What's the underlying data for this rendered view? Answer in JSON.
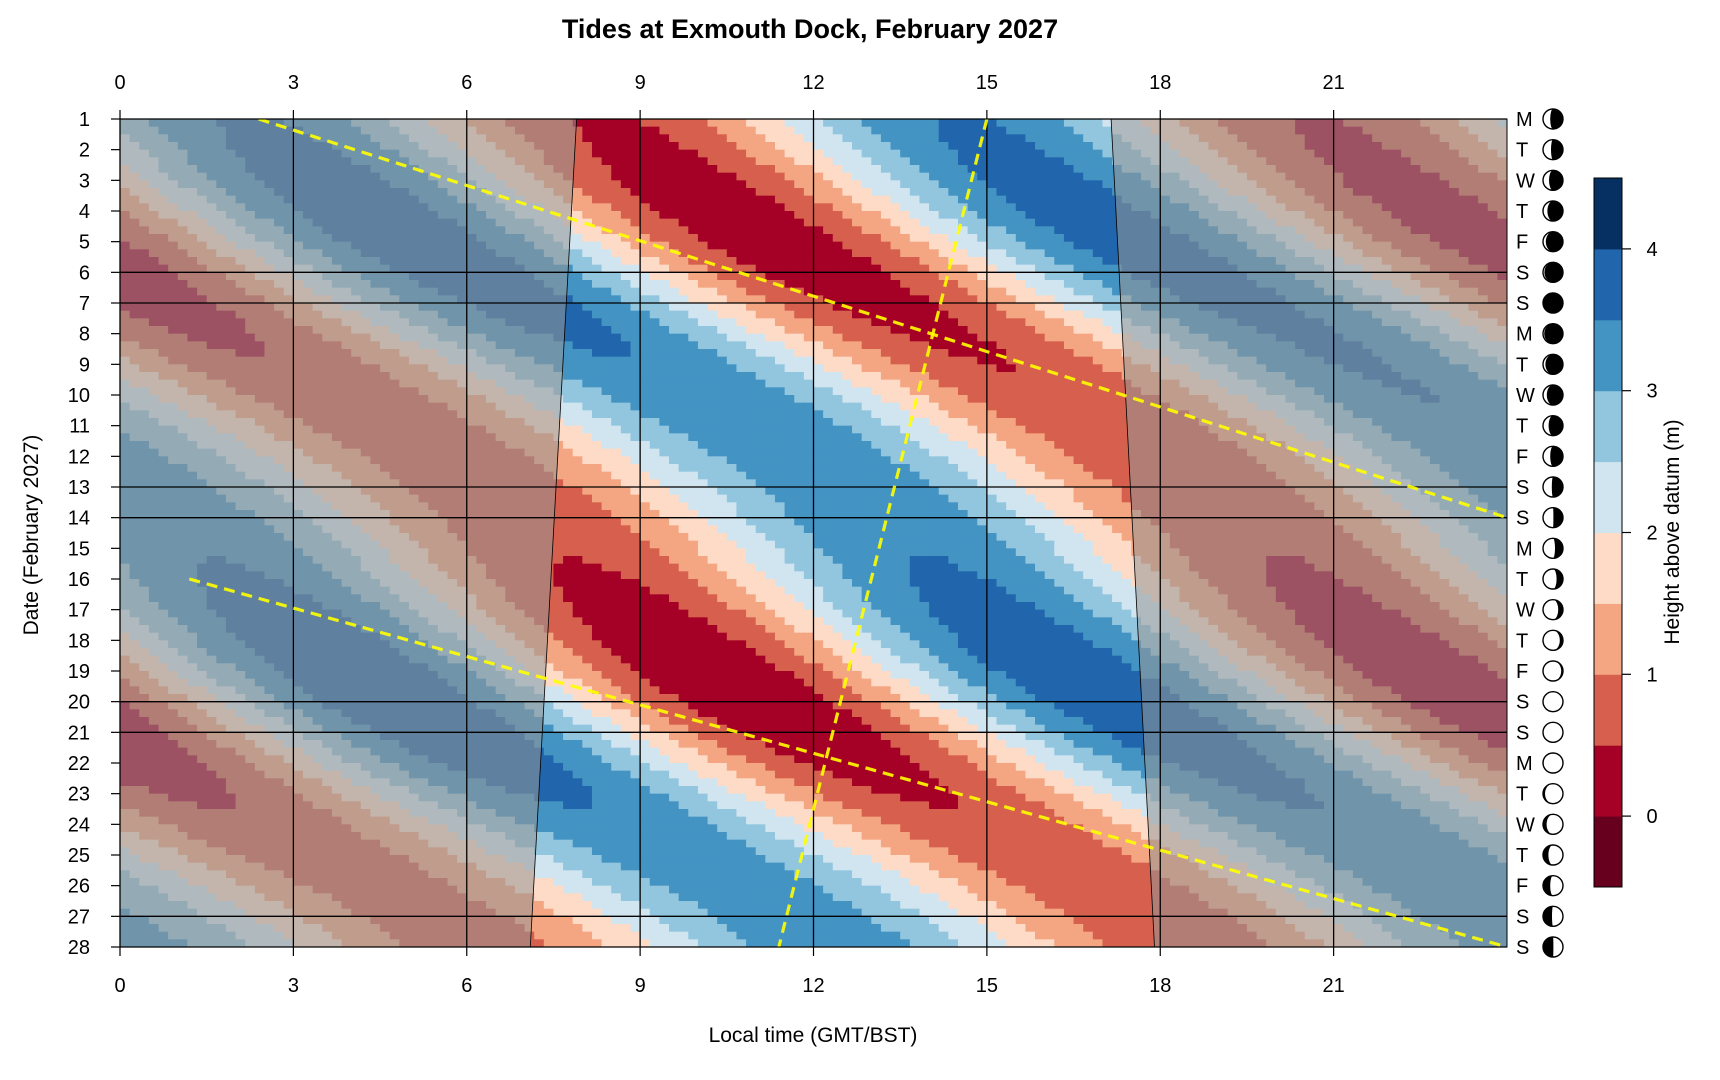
{
  "chart_data": {
    "type": "heatmap",
    "title": "Tides at Exmouth Dock, February 2027",
    "xlabel": "Local time (GMT/BST)",
    "ylabel": "Date (February 2027)",
    "colorbar_label": "Height above datum (m)",
    "x_range": [
      0,
      24
    ],
    "y_range": [
      1,
      28
    ],
    "x_ticks": [
      "0",
      "3",
      "6",
      "9",
      "12",
      "15",
      "18",
      "21"
    ],
    "y_ticks": [
      "1",
      "2",
      "3",
      "4",
      "5",
      "6",
      "7",
      "8",
      "9",
      "10",
      "11",
      "12",
      "13",
      "14",
      "15",
      "16",
      "17",
      "18",
      "19",
      "20",
      "21",
      "22",
      "23",
      "24",
      "25",
      "26",
      "27",
      "28"
    ],
    "weekdays": [
      "M",
      "T",
      "W",
      "T",
      "F",
      "S",
      "S",
      "M",
      "T",
      "W",
      "T",
      "F",
      "S",
      "S",
      "M",
      "T",
      "W",
      "T",
      "F",
      "S",
      "S",
      "M",
      "T",
      "W",
      "T",
      "F",
      "S",
      "S"
    ],
    "moon_phase_fraction": [
      0.64,
      0.6,
      0.7,
      0.78,
      0.86,
      0.93,
      0.99,
      0.94,
      0.88,
      0.81,
      0.72,
      0.64,
      0.56,
      0.48,
      0.4,
      0.32,
      0.24,
      0.16,
      0.09,
      0.02,
      0.0,
      0.03,
      0.1,
      0.18,
      0.27,
      0.36,
      0.45,
      0.52
    ],
    "colorbar_ticks": [
      "0",
      "1",
      "2",
      "3",
      "4"
    ],
    "colorbar_range": [
      -0.5,
      4.5
    ],
    "color_levels": [
      {
        "from": -0.5,
        "to": 0.0,
        "color": "#67001f"
      },
      {
        "from": 0.0,
        "to": 0.5,
        "color": "#a50026"
      },
      {
        "from": 0.5,
        "to": 1.0,
        "color": "#d6604d"
      },
      {
        "from": 1.0,
        "to": 1.5,
        "color": "#f4a582"
      },
      {
        "from": 1.5,
        "to": 2.0,
        "color": "#fddbc7"
      },
      {
        "from": 2.0,
        "to": 2.5,
        "color": "#d1e5f0"
      },
      {
        "from": 2.5,
        "to": 3.0,
        "color": "#92c5de"
      },
      {
        "from": 3.0,
        "to": 3.5,
        "color": "#4393c3"
      },
      {
        "from": 3.5,
        "to": 4.0,
        "color": "#2166ac"
      },
      {
        "from": 4.0,
        "to": 4.5,
        "color": "#053061"
      }
    ],
    "tide_model": {
      "mean": 2.0,
      "semi_diurnal_amplitude": 1.55,
      "spring_neap_modulation": 0.32,
      "high_water_hour_day1": 14.7,
      "daily_delay_hours": 0.81,
      "solar_amplitude": 0.42,
      "solar_high_water_hour": 14.1
    },
    "daylight": {
      "sunrise": [
        {
          "day": 1,
          "hour": 7.9
        },
        {
          "day": 28,
          "hour": 7.1
        }
      ],
      "sunset": [
        {
          "day": 1,
          "hour": 17.15
        },
        {
          "day": 28,
          "hour": 17.9
        }
      ]
    },
    "high_water_tracks": [
      [
        {
          "day": 1,
          "hour": 2.4
        },
        {
          "day": 14,
          "hour": 24.0
        }
      ],
      [
        {
          "day": 1,
          "hour": 15.0
        },
        {
          "day": 28,
          "hour": 11.4
        }
      ],
      [
        {
          "day": 16,
          "hour": 1.2
        },
        {
          "day": 28,
          "hour": 24.0
        }
      ]
    ],
    "grid_x_hours": [
      0,
      3,
      6,
      9,
      12,
      15,
      18,
      21
    ],
    "grid_days": [
      1,
      6,
      7,
      13,
      14,
      20,
      21,
      27,
      28
    ],
    "colors": {
      "track": "#ffff00",
      "grid": "#000000",
      "night_shade": "#969696"
    }
  }
}
